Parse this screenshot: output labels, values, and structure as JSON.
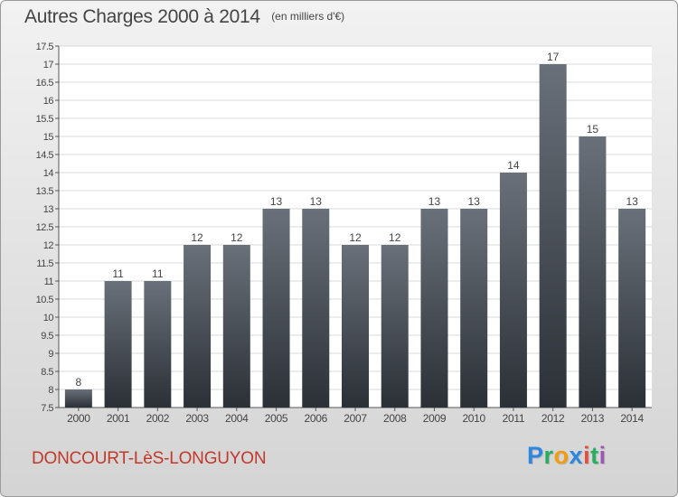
{
  "header": {
    "title": "Autres Charges 2000 à 2014",
    "unit": "(en milliers d'€)"
  },
  "footer": {
    "commune": "DONCOURT-LèS-LONGUYON",
    "brand_letters": [
      "P",
      "r",
      "o",
      "x",
      "i",
      "t",
      "i"
    ],
    "brand_colors": [
      "#2e86de",
      "#27ae60",
      "#f39c12",
      "#2e86de",
      "#e74c3c",
      "#27ae60",
      "#9b59b6"
    ]
  },
  "colors": {
    "bar_top": "#6a7079",
    "bar_bottom": "#2b3037",
    "text": "#444444",
    "grid": "#d9d9d9"
  },
  "chart_data": {
    "type": "bar",
    "categories": [
      "2000",
      "2001",
      "2002",
      "2003",
      "2004",
      "2005",
      "2006",
      "2007",
      "2008",
      "2009",
      "2010",
      "2011",
      "2012",
      "2013",
      "2014"
    ],
    "values": [
      8,
      11,
      11,
      12,
      12,
      13,
      13,
      12,
      12,
      13,
      13,
      14,
      17,
      15,
      13
    ],
    "ylim": [
      7.5,
      17.5
    ],
    "yticks": [
      "7.5",
      "8",
      "8.5",
      "9",
      "9.5",
      "10",
      "10.5",
      "11",
      "11.5",
      "12",
      "12.5",
      "13",
      "13.5",
      "14",
      "14.5",
      "15",
      "15.5",
      "16",
      "16.5",
      "17",
      "17.5"
    ],
    "grid": true,
    "legend": "none"
  }
}
